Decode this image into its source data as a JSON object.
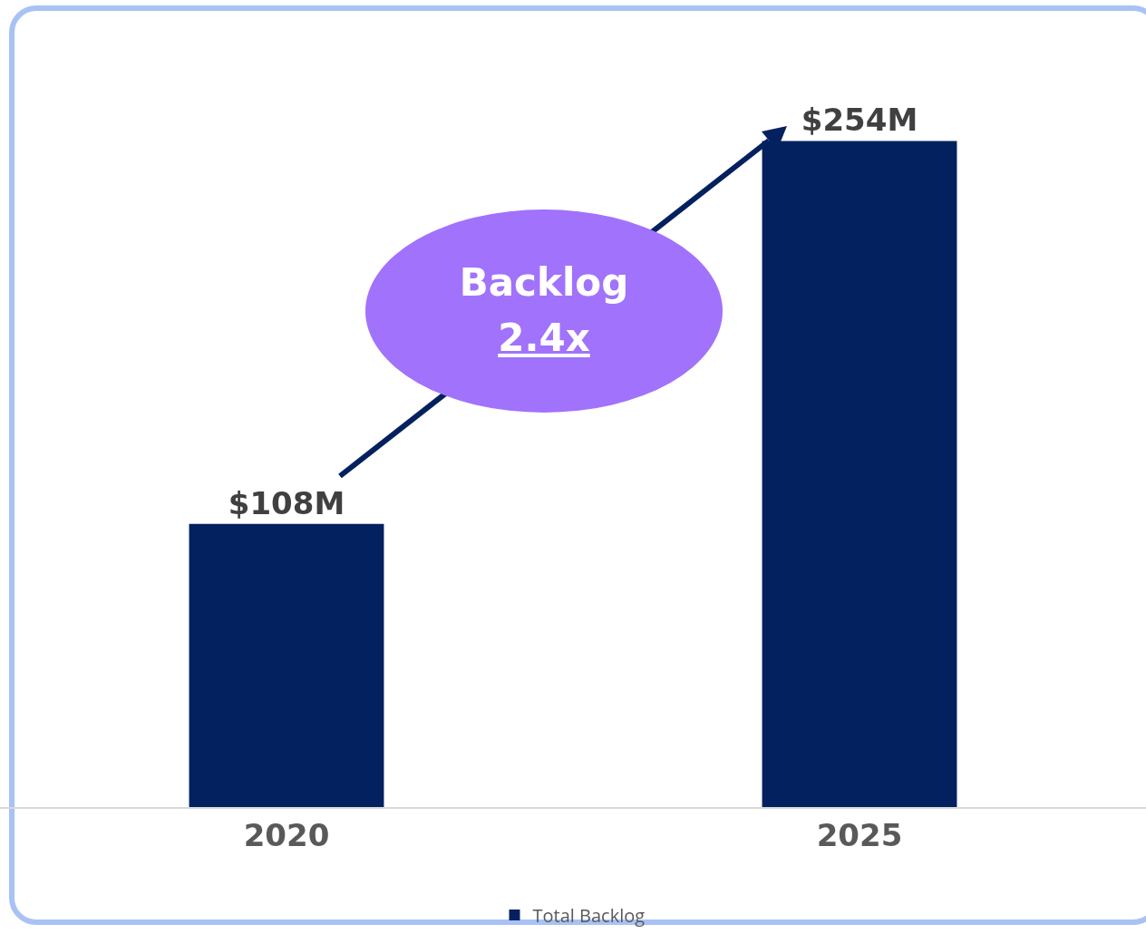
{
  "chart_data": {
    "type": "bar",
    "categories": [
      "2020",
      "2025"
    ],
    "series": [
      {
        "name": "Total Backlog",
        "color": "#03205f",
        "values": [
          108,
          254
        ],
        "value_labels": [
          "$108M",
          "$254M"
        ]
      }
    ],
    "annotations": [
      "Backlog",
      "2.4x"
    ],
    "legend": "bottom",
    "grid": false
  }
}
